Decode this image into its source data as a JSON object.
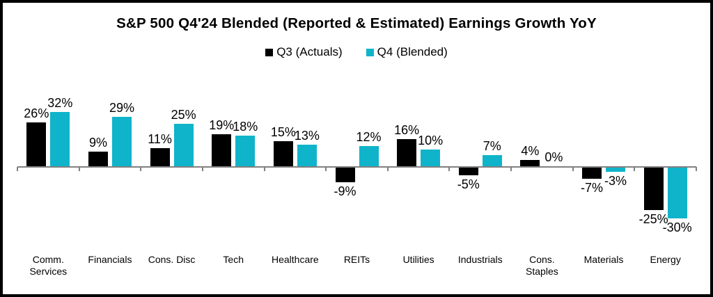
{
  "chart_data": {
    "type": "bar",
    "title": "S&P 500 Q4'24 Blended (Reported & Estimated) Earnings Growth YoY",
    "categories": [
      "Comm.\nServices",
      "Financials",
      "Cons. Disc",
      "Tech",
      "Healthcare",
      "REITs",
      "Utilities",
      "Industrials",
      "Cons.\nStaples",
      "Materials",
      "Energy"
    ],
    "series": [
      {
        "name": "Q3 (Actuals)",
        "color": "#000000",
        "values": [
          26,
          9,
          11,
          19,
          15,
          -9,
          16,
          -5,
          4,
          -7,
          -25
        ]
      },
      {
        "name": "Q4 (Blended)",
        "color": "#0FB4CB",
        "values": [
          32,
          29,
          25,
          18,
          13,
          12,
          10,
          7,
          0,
          -3,
          -30
        ]
      }
    ],
    "value_suffix": "%",
    "ylim": [
      -30,
      32
    ],
    "legend_position": "top",
    "grid": false,
    "data_labels": true,
    "axis_color": "#808080",
    "background": "#ffffff"
  },
  "legend": [
    {
      "label": "Q3 (Actuals)",
      "color": "#000000"
    },
    {
      "label": "Q4 (Blended)",
      "color": "#0FB4CB"
    }
  ]
}
